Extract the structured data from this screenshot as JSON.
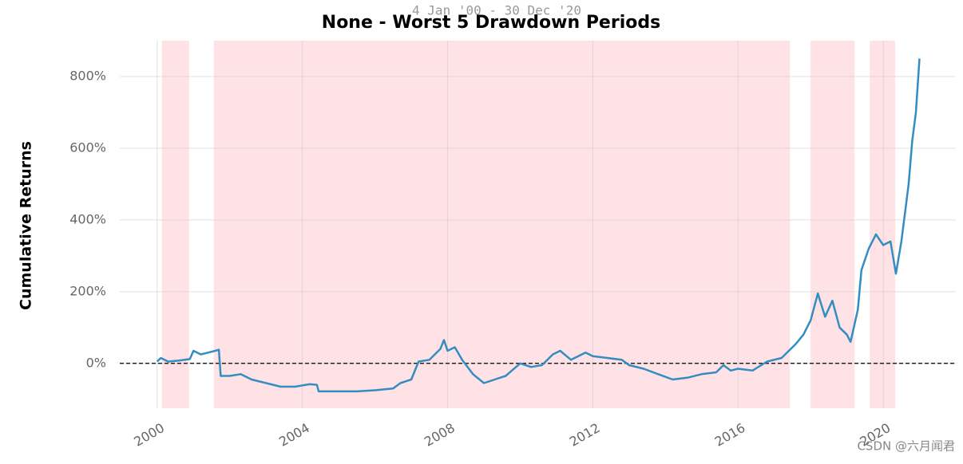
{
  "chart_data": {
    "type": "line",
    "title": "None - Worst 5 Drawdown Periods",
    "subtitle": "4 Jan '00 - 30 Dec '20",
    "y_label": "Cumulative Returns",
    "watermark": "CSDN @六月闻君",
    "x": [
      2000.0,
      2000.1,
      2000.3,
      2000.6,
      2000.9,
      2001.0,
      2001.2,
      2001.4,
      2001.6,
      2001.7,
      2001.75,
      2002.0,
      2002.3,
      2002.6,
      2003.0,
      2003.4,
      2003.8,
      2004.2,
      2004.4,
      2004.45,
      2005.0,
      2005.5,
      2006.0,
      2006.5,
      2006.7,
      2007.0,
      2007.2,
      2007.5,
      2007.8,
      2007.9,
      2008.0,
      2008.2,
      2008.4,
      2008.7,
      2009.0,
      2009.3,
      2009.6,
      2010.0,
      2010.3,
      2010.6,
      2010.9,
      2011.1,
      2011.4,
      2011.8,
      2012.0,
      2012.4,
      2012.8,
      2013.0,
      2013.4,
      2013.8,
      2014.2,
      2014.6,
      2015.0,
      2015.4,
      2015.6,
      2015.8,
      2016.0,
      2016.4,
      2016.8,
      2017.2,
      2017.6,
      2017.8,
      2018.0,
      2018.2,
      2018.4,
      2018.6,
      2018.8,
      2019.0,
      2019.1,
      2019.3,
      2019.4,
      2019.6,
      2019.8,
      2020.0,
      2020.2,
      2020.35,
      2020.5,
      2020.6,
      2020.7,
      2020.8,
      2020.9,
      2021.0
    ],
    "series": [
      {
        "name": "Cumulative Returns",
        "color": "#348dc1",
        "values": [
          5,
          15,
          5,
          8,
          12,
          35,
          25,
          30,
          35,
          38,
          -35,
          -35,
          -30,
          -45,
          -55,
          -65,
          -65,
          -58,
          -60,
          -78,
          -78,
          -78,
          -75,
          -70,
          -55,
          -45,
          5,
          10,
          40,
          65,
          35,
          45,
          10,
          -30,
          -55,
          -45,
          -35,
          0,
          -10,
          -5,
          25,
          35,
          10,
          30,
          20,
          15,
          10,
          -5,
          -15,
          -30,
          -45,
          -40,
          -30,
          -25,
          -5,
          -20,
          -15,
          -20,
          5,
          15,
          55,
          80,
          120,
          195,
          130,
          175,
          100,
          80,
          60,
          150,
          260,
          320,
          360,
          330,
          340,
          250,
          340,
          420,
          500,
          620,
          700,
          850
        ]
      }
    ],
    "drawdowns": [
      [
        2000.13,
        2000.88
      ],
      [
        2001.56,
        2017.43
      ],
      [
        2018.0,
        2019.21
      ],
      [
        2019.63,
        2019.96
      ],
      [
        2019.96,
        2020.33
      ]
    ],
    "drawdown_color": "#ffdfe3",
    "hline": 0,
    "xlim": [
      1998.97,
      2022.0
    ],
    "xticks": [
      2000,
      2004,
      2008,
      2012,
      2016,
      2020
    ],
    "ylim": [
      -125,
      900
    ],
    "yticks": [
      {
        "value": 0,
        "label": "0%"
      },
      {
        "value": 200,
        "label": "200%"
      },
      {
        "value": 400,
        "label": "400%"
      },
      {
        "value": 600,
        "label": "600%"
      },
      {
        "value": 800,
        "label": "800%"
      }
    ],
    "grid": true
  }
}
